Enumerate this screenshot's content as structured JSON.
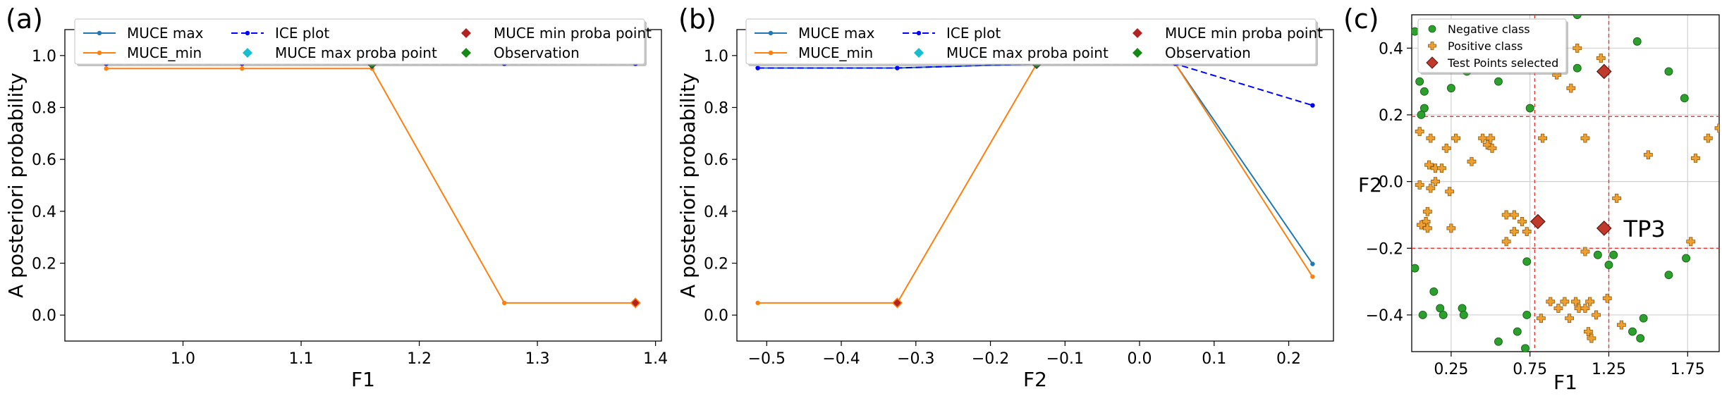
{
  "chart_data": [
    {
      "panel_label": "(a)",
      "type": "line",
      "xlabel": "F1",
      "ylabel": "A posteriori probability",
      "xlim": [
        0.9,
        1.405
      ],
      "ylim": [
        -0.1,
        1.1
      ],
      "xticks": [
        1.0,
        1.1,
        1.2,
        1.3,
        1.4
      ],
      "xtick_labels": [
        "1.0",
        "1.1",
        "1.2",
        "1.3",
        "1.4"
      ],
      "yticks": [
        0.0,
        0.2,
        0.4,
        0.6,
        0.8,
        1.0
      ],
      "ytick_labels": [
        "0.0",
        "0.2",
        "0.4",
        "0.6",
        "0.8",
        "1.0"
      ],
      "x": [
        0.935,
        1.05,
        1.16,
        1.272,
        1.383
      ],
      "series": [
        {
          "name": "MUCE max",
          "values": [
            0.968,
            0.968,
            0.968,
            0.968,
            0.968
          ]
        },
        {
          "name": "MUCE_min",
          "values": [
            0.95,
            0.95,
            0.95,
            0.047,
            0.047
          ]
        },
        {
          "name": "ICE plot",
          "values": [
            0.968,
            0.968,
            0.968,
            0.968,
            0.968
          ]
        }
      ],
      "markers": {
        "muce_max_proba_point": {
          "x": 1.16,
          "y": 0.968
        },
        "muce_min_proba_point": {
          "x": 1.383,
          "y": 0.047
        },
        "observation": {
          "x": 1.16,
          "y": 0.968
        }
      },
      "legend": {
        "location": "top",
        "entries": [
          "MUCE max",
          "MUCE_min",
          "ICE plot",
          "MUCE max proba point",
          "MUCE min proba point",
          "Observation"
        ]
      }
    },
    {
      "panel_label": "(b)",
      "type": "line",
      "xlabel": "F2",
      "ylabel": "A posteriori probability",
      "xlim": [
        -0.54,
        0.26
      ],
      "ylim": [
        -0.1,
        1.1
      ],
      "xticks": [
        -0.5,
        -0.4,
        -0.3,
        -0.2,
        -0.1,
        0.0,
        0.1,
        0.2
      ],
      "xtick_labels": [
        "−0.5",
        "−0.4",
        "−0.3",
        "−0.2",
        "−0.1",
        "0.0",
        "0.1",
        "0.2"
      ],
      "yticks": [
        0.0,
        0.2,
        0.4,
        0.6,
        0.8,
        1.0
      ],
      "ytick_labels": [
        "0.0",
        "0.2",
        "0.4",
        "0.6",
        "0.8",
        "1.0"
      ],
      "x": [
        -0.512,
        -0.325,
        -0.138,
        0.048,
        0.232
      ],
      "series": [
        {
          "name": "MUCE max",
          "values": [
            0.952,
            0.952,
            0.968,
            0.968,
            0.197
          ]
        },
        {
          "name": "MUCE_min",
          "values": [
            0.047,
            0.047,
            0.968,
            0.968,
            0.148
          ]
        },
        {
          "name": "ICE plot",
          "values": [
            0.952,
            0.952,
            0.968,
            0.968,
            0.808
          ]
        }
      ],
      "markers": {
        "muce_max_proba_point": {
          "x": -0.138,
          "y": 0.968
        },
        "muce_min_proba_point": {
          "x": -0.325,
          "y": 0.047
        },
        "observation": {
          "x": -0.138,
          "y": 0.968
        }
      },
      "legend": {
        "location": "top",
        "entries": [
          "MUCE max",
          "MUCE_min",
          "ICE plot",
          "MUCE max proba point",
          "MUCE min proba point",
          "Observation"
        ]
      }
    },
    {
      "panel_label": "(c)",
      "type": "scatter",
      "xlabel": "F1",
      "ylabel": "F2",
      "xlim": [
        0.0,
        1.95
      ],
      "ylim": [
        -0.51,
        0.5
      ],
      "xticks": [
        0.25,
        0.75,
        1.25,
        1.75
      ],
      "xtick_labels": [
        "0.25",
        "0.75",
        "1.25",
        "1.75"
      ],
      "yticks": [
        0.4,
        0.2,
        0.0,
        -0.2,
        -0.4
      ],
      "ytick_labels": [
        "0.4",
        "0.2",
        "0.0",
        "−0.2",
        "−0.4"
      ],
      "grid": true,
      "reference_lines": {
        "vertical": [
          0.78,
          1.25
        ],
        "horizontal": [
          0.195,
          -0.2
        ]
      },
      "annotation": {
        "text": "TP3",
        "x": 1.21,
        "y": -0.14
      },
      "series": [
        {
          "name": "Negative class",
          "points": [
            [
              0.12,
              0.45
            ],
            [
              0.2,
              0.38
            ],
            [
              0.12,
              0.35
            ],
            [
              0.05,
              0.3
            ],
            [
              0.08,
              0.27
            ],
            [
              0.25,
              0.28
            ],
            [
              0.35,
              0.33
            ],
            [
              0.4,
              0.35
            ],
            [
              0.55,
              0.3
            ],
            [
              0.08,
              0.22
            ],
            [
              0.06,
              0.2
            ],
            [
              0.75,
              0.22
            ],
            [
              1.05,
              0.34
            ],
            [
              1.05,
              0.5
            ],
            [
              1.43,
              0.42
            ],
            [
              1.63,
              0.33
            ],
            [
              1.73,
              0.25
            ],
            [
              0.02,
              -0.26
            ],
            [
              0.07,
              -0.4
            ],
            [
              0.14,
              -0.33
            ],
            [
              0.18,
              -0.38
            ],
            [
              0.2,
              -0.4
            ],
            [
              0.32,
              -0.38
            ],
            [
              0.33,
              -0.4
            ],
            [
              0.55,
              -0.48
            ],
            [
              0.67,
              -0.45
            ],
            [
              0.73,
              -0.4
            ],
            [
              0.73,
              -0.24
            ],
            [
              1.47,
              -0.41
            ],
            [
              1.4,
              -0.45
            ],
            [
              1.45,
              -0.47
            ],
            [
              1.63,
              -0.28
            ],
            [
              1.74,
              -0.23
            ],
            [
              1.18,
              -0.22
            ],
            [
              1.28,
              -0.22
            ],
            [
              1.25,
              -0.25
            ],
            [
              0.72,
              -0.5
            ],
            [
              0.02,
              0.45
            ]
          ]
        },
        {
          "name": "Positive class",
          "points": [
            [
              0.05,
              0.15
            ],
            [
              0.12,
              0.13
            ],
            [
              0.22,
              0.1
            ],
            [
              0.28,
              0.13
            ],
            [
              0.45,
              0.13
            ],
            [
              0.48,
              0.11
            ],
            [
              0.51,
              0.1
            ],
            [
              0.5,
              0.13
            ],
            [
              0.38,
              0.06
            ],
            [
              0.11,
              0.05
            ],
            [
              0.15,
              0.04
            ],
            [
              0.19,
              0.04
            ],
            [
              0.12,
              -0.02
            ],
            [
              0.15,
              0.0
            ],
            [
              0.05,
              -0.01
            ],
            [
              0.1,
              -0.09
            ],
            [
              0.09,
              -0.12
            ],
            [
              0.1,
              -0.14
            ],
            [
              0.06,
              -0.13
            ],
            [
              0.24,
              -0.03
            ],
            [
              0.25,
              -0.14
            ],
            [
              0.6,
              -0.1
            ],
            [
              0.65,
              -0.1
            ],
            [
              0.7,
              -0.12
            ],
            [
              0.73,
              -0.15
            ],
            [
              0.65,
              -0.15
            ],
            [
              0.83,
              0.13
            ],
            [
              0.92,
              0.32
            ],
            [
              1.01,
              0.28
            ],
            [
              1.05,
              0.4
            ],
            [
              1.1,
              0.13
            ],
            [
              1.2,
              0.37
            ],
            [
              0.95,
              0.37
            ],
            [
              0.88,
              -0.36
            ],
            [
              0.93,
              -0.38
            ],
            [
              0.97,
              -0.36
            ],
            [
              1.0,
              -0.41
            ],
            [
              1.04,
              -0.36
            ],
            [
              1.06,
              -0.38
            ],
            [
              1.1,
              -0.38
            ],
            [
              1.12,
              -0.45
            ],
            [
              1.14,
              -0.47
            ],
            [
              1.17,
              -0.4
            ],
            [
              1.3,
              -0.05
            ],
            [
              1.33,
              -0.43
            ],
            [
              0.82,
              -0.41
            ],
            [
              1.1,
              -0.21
            ],
            [
              1.5,
              0.08
            ],
            [
              1.8,
              0.07
            ],
            [
              1.88,
              0.13
            ],
            [
              1.95,
              0.16
            ],
            [
              1.77,
              -0.18
            ],
            [
              1.24,
              -0.35
            ],
            [
              1.13,
              -0.36
            ],
            [
              0.6,
              -0.18
            ]
          ]
        },
        {
          "name": "Test Points selected",
          "points": [
            [
              1.22,
              0.33
            ],
            [
              0.8,
              -0.12
            ],
            [
              1.22,
              -0.14
            ]
          ]
        }
      ],
      "legend": {
        "location": "top-left",
        "entries": [
          "Negative class",
          "Positive class",
          "Test Points selected"
        ]
      }
    }
  ],
  "colors": {
    "muce_max": "#1f77b4",
    "muce_min": "#ff7f0e",
    "ice": "#0000ff",
    "max_point": "#17becf",
    "min_point": "#b22222",
    "observation": "#138a13",
    "negative": "#2ca02c",
    "positive": "#f0a030",
    "test": "#c0392b",
    "refline": "#ee3333"
  }
}
